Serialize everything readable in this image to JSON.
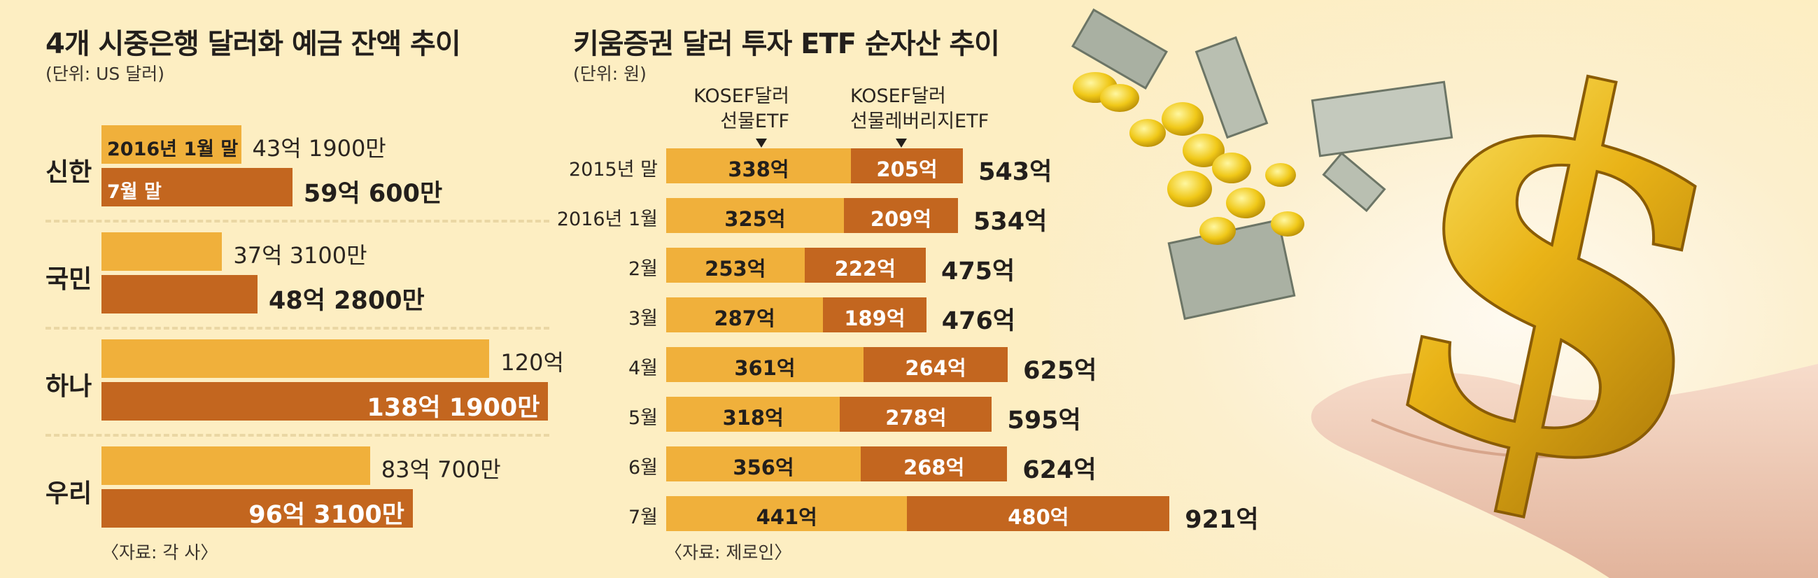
{
  "colors": {
    "background": "#fdeec2",
    "jan_bar": "#f0b03b",
    "jul_bar": "#c3661f",
    "text": "#231f1c"
  },
  "chart_data": [
    {
      "type": "bar",
      "orientation": "horizontal",
      "title": "4개 시중은행 달러화 예금 잔액 추이",
      "unit": "(단위: US 달러)",
      "source": "〈자료: 각 사〉",
      "categories": [
        "신한",
        "국민",
        "하나",
        "우리"
      ],
      "series": [
        {
          "name": "2016년 1월 말",
          "color": "#f0b03b",
          "values": [
            43.19,
            37.31,
            120,
            83.07
          ],
          "labels": [
            "43억 1900만",
            "37억 3100만",
            "120억",
            "83억 700만"
          ]
        },
        {
          "name": "7월 말",
          "color": "#c3661f",
          "values": [
            59.06,
            48.28,
            138.19,
            96.31
          ],
          "labels": [
            "59억 600만",
            "48억 2800만",
            "138억 1900만",
            "96억 3100만"
          ]
        }
      ],
      "value_unit": "억 달러",
      "grid": false
    },
    {
      "type": "bar",
      "orientation": "horizontal",
      "stacked": true,
      "title": "키움증권 달러 투자 ETF 순자산 추이",
      "unit": "(단위: 원)",
      "source": "〈자료: 제로인〉",
      "categories": [
        "2015년 말",
        "2016년 1월",
        "2월",
        "3월",
        "4월",
        "5월",
        "6월",
        "7월"
      ],
      "series": [
        {
          "name_lines": [
            "KOSEF달러",
            "선물ETF"
          ],
          "color": "#f0b03b",
          "values": [
            338,
            325,
            253,
            287,
            361,
            318,
            356,
            441
          ]
        },
        {
          "name_lines": [
            "KOSEF달러",
            "선물레버리지ETF"
          ],
          "color": "#c3661f",
          "values": [
            205,
            209,
            222,
            189,
            264,
            278,
            268,
            480
          ]
        }
      ],
      "totals": [
        543,
        534,
        475,
        476,
        625,
        595,
        624,
        921
      ],
      "value_suffix": "억",
      "grid": false
    }
  ],
  "illustration": {
    "icons": [
      "dollar-sign-icon",
      "gold-coin-icon",
      "dollar-bill-icon",
      "hands-icon"
    ]
  }
}
